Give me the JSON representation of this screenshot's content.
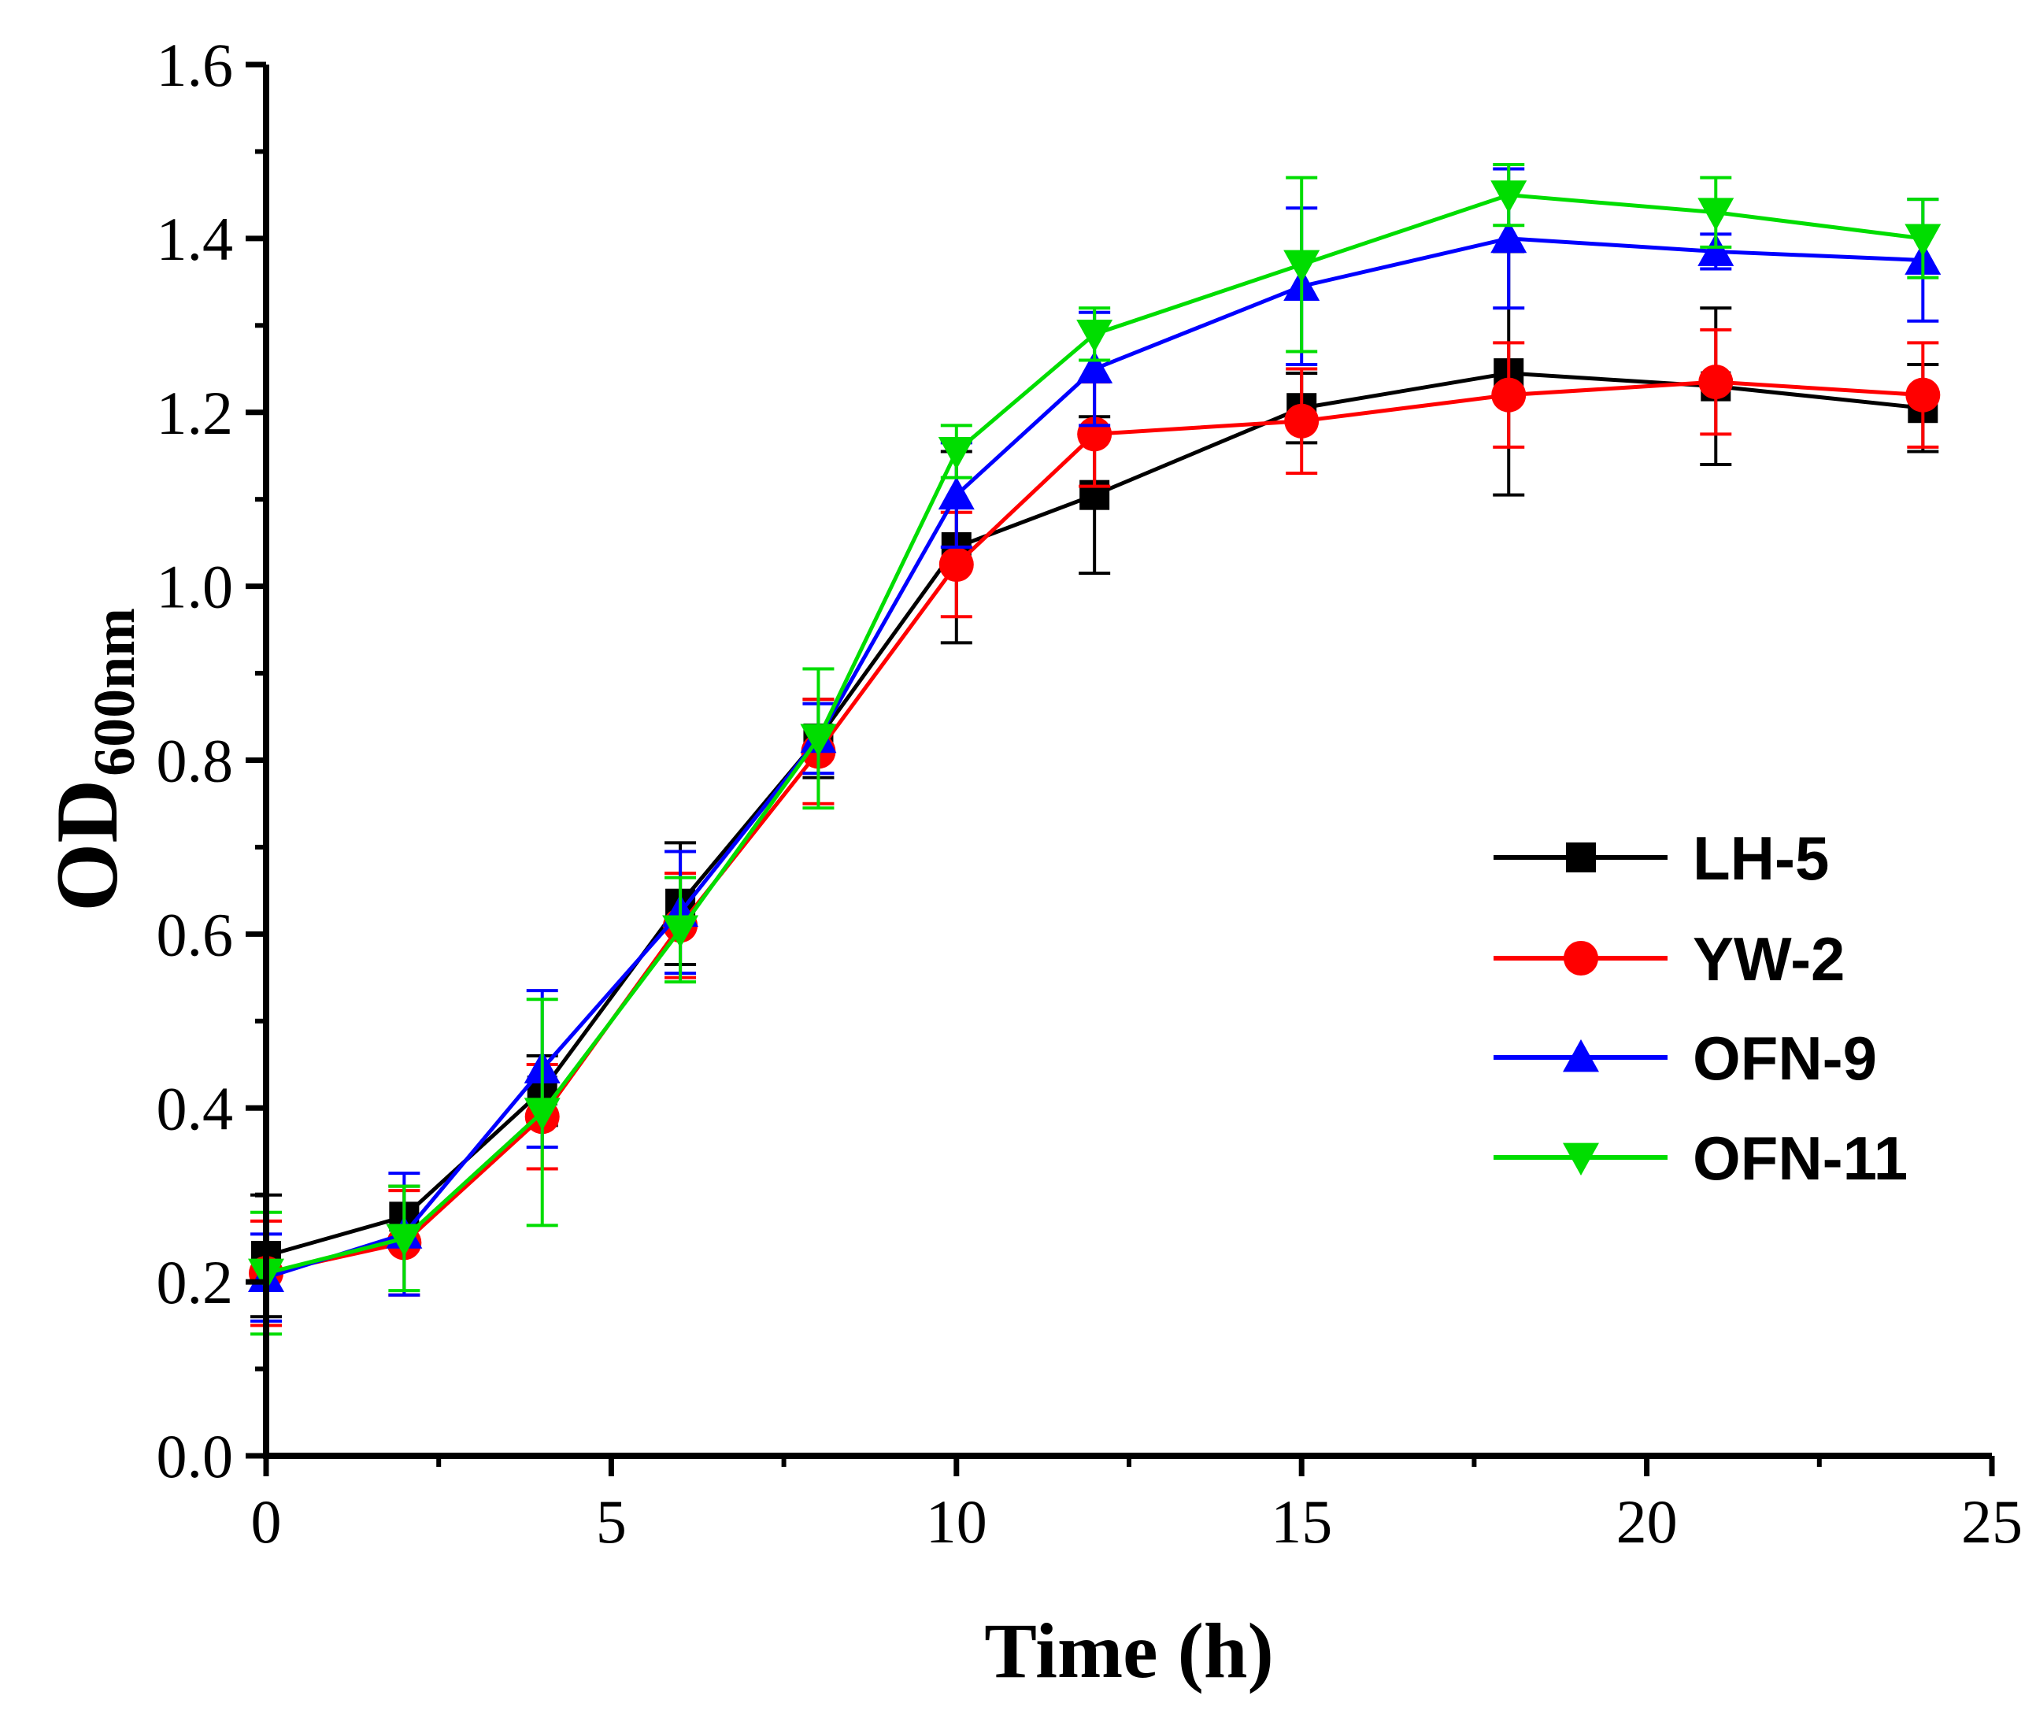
{
  "chart_data": {
    "type": "line",
    "title": "",
    "xlabel": "Time (h)",
    "ylabel": {
      "main": "OD",
      "subscript": "600nm"
    },
    "xlim": [
      0,
      25
    ],
    "ylim": [
      0.0,
      1.6
    ],
    "xticks": [
      0,
      5,
      10,
      15,
      20,
      25
    ],
    "xtick_labels": [
      "0",
      "5",
      "10",
      "15",
      "20",
      "25"
    ],
    "yticks": [
      0.0,
      0.2,
      0.4,
      0.6,
      0.8,
      1.0,
      1.2,
      1.4,
      1.6
    ],
    "ytick_labels": [
      "0.0",
      "0.2",
      "0.4",
      "0.6",
      "0.8",
      "1.0",
      "1.2",
      "1.4",
      "1.6"
    ],
    "grid": false,
    "legend_position": "right",
    "x": [
      0,
      2,
      4,
      6,
      8,
      10,
      12,
      15,
      18,
      21,
      24
    ],
    "series": [
      {
        "name": "LH-5",
        "color": "#000000",
        "marker": "square",
        "values": [
          0.23,
          0.275,
          0.42,
          0.635,
          0.825,
          1.045,
          1.105,
          1.205,
          1.245,
          1.23,
          1.205
        ],
        "errors": [
          0.07,
          0.035,
          0.04,
          0.07,
          0.045,
          0.11,
          0.09,
          0.04,
          0.14,
          0.09,
          0.05
        ]
      },
      {
        "name": "YW-2",
        "color": "#ff0000",
        "marker": "circle",
        "values": [
          0.21,
          0.245,
          0.39,
          0.61,
          0.81,
          1.025,
          1.175,
          1.19,
          1.22,
          1.235,
          1.22
        ]
      },
      {
        "name": "OFN-9",
        "color": "#0000ff",
        "marker": "triangle-up",
        "values": [
          0.205,
          0.255,
          0.445,
          0.625,
          0.825,
          1.105,
          1.25,
          1.345,
          1.4,
          1.385,
          1.375
        ],
        "errors": [
          0.05,
          0.07,
          0.09,
          0.07,
          0.04,
          0.06,
          0.065,
          0.09,
          0.08,
          0.02,
          0.07
        ]
      },
      {
        "name": "OFN-11",
        "color": "#00dd00",
        "marker": "triangle-down",
        "values": [
          0.21,
          0.25,
          0.395,
          0.605,
          0.825,
          1.155,
          1.29,
          1.37,
          1.45,
          1.43,
          1.4
        ],
        "errors": [
          0.07,
          0.06,
          0.13,
          0.06,
          0.08,
          0.03,
          0.03,
          0.1,
          0.035,
          0.04,
          0.045
        ]
      }
    ]
  }
}
